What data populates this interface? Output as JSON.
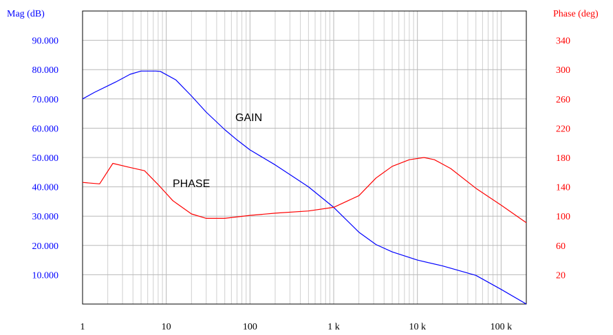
{
  "chart_data": {
    "type": "line",
    "x_scale": "log",
    "xlim": [
      1,
      200000
    ],
    "x_ticks": [
      {
        "value": 1,
        "label": "1"
      },
      {
        "value": 10,
        "label": "10"
      },
      {
        "value": 100,
        "label": "100"
      },
      {
        "value": 1000,
        "label": "1 k"
      },
      {
        "value": 10000,
        "label": "10 k"
      },
      {
        "value": 100000,
        "label": "100 k"
      }
    ],
    "left_axis": {
      "title": "Mag (dB)",
      "color": "#0000ff",
      "range": [
        0,
        100
      ],
      "ticks": [
        {
          "value": 10,
          "label": "10.000"
        },
        {
          "value": 20,
          "label": "20.000"
        },
        {
          "value": 30,
          "label": "30.000"
        },
        {
          "value": 40,
          "label": "40.000"
        },
        {
          "value": 50,
          "label": "50.000"
        },
        {
          "value": 60,
          "label": "60.000"
        },
        {
          "value": 70,
          "label": "70.000"
        },
        {
          "value": 80,
          "label": "80.000"
        },
        {
          "value": 90,
          "label": "90.000"
        }
      ]
    },
    "right_axis": {
      "title": "Phase (deg)",
      "color": "#ff0000",
      "range": [
        -20,
        380
      ],
      "ticks": [
        {
          "value": 20,
          "label": "20"
        },
        {
          "value": 60,
          "label": "60"
        },
        {
          "value": 100,
          "label": "100"
        },
        {
          "value": 140,
          "label": "140"
        },
        {
          "value": 180,
          "label": "180"
        },
        {
          "value": 220,
          "label": "220"
        },
        {
          "value": 260,
          "label": "260"
        },
        {
          "value": 300,
          "label": "300"
        },
        {
          "value": 340,
          "label": "340"
        }
      ]
    },
    "grid": true,
    "series": [
      {
        "name": "GAIN",
        "axis": "left",
        "color": "#0000ff",
        "points": [
          [
            1,
            70
          ],
          [
            1.4,
            72.3
          ],
          [
            2.5,
            75.8
          ],
          [
            3.7,
            78.4
          ],
          [
            5,
            79.5
          ],
          [
            7.5,
            79.5
          ],
          [
            8.5,
            79.4
          ],
          [
            13,
            76.5
          ],
          [
            20,
            71
          ],
          [
            30,
            65.5
          ],
          [
            50,
            59.5
          ],
          [
            70,
            56
          ],
          [
            100,
            52.6
          ],
          [
            200,
            47.5
          ],
          [
            500,
            40
          ],
          [
            1000,
            33
          ],
          [
            2000,
            24.5
          ],
          [
            3200,
            20.3
          ],
          [
            5000,
            17.8
          ],
          [
            10000,
            15
          ],
          [
            20000,
            13
          ],
          [
            50000,
            9.8
          ],
          [
            100000,
            5
          ],
          [
            200000,
            0
          ]
        ]
      },
      {
        "name": "PHASE",
        "axis": "right",
        "color": "#ff0000",
        "points": [
          [
            1,
            146
          ],
          [
            1.6,
            144
          ],
          [
            2.3,
            172
          ],
          [
            3.5,
            167
          ],
          [
            5.5,
            162
          ],
          [
            8,
            143
          ],
          [
            12,
            121
          ],
          [
            20,
            103
          ],
          [
            30,
            97
          ],
          [
            50,
            97
          ],
          [
            100,
            101
          ],
          [
            200,
            104
          ],
          [
            500,
            107
          ],
          [
            1000,
            112
          ],
          [
            2000,
            128
          ],
          [
            3200,
            152
          ],
          [
            5000,
            168
          ],
          [
            8000,
            177
          ],
          [
            12000,
            180
          ],
          [
            16000,
            177
          ],
          [
            25000,
            165
          ],
          [
            50000,
            138
          ],
          [
            100000,
            115
          ],
          [
            200000,
            91
          ]
        ]
      }
    ],
    "annotations": [
      {
        "text": "GAIN",
        "series": "GAIN"
      },
      {
        "text": "PHASE",
        "series": "PHASE"
      }
    ]
  }
}
